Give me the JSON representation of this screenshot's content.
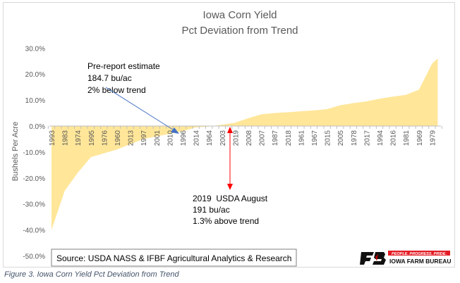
{
  "chart_data": {
    "type": "area",
    "title": "Iowa Corn Yield",
    "subtitle": "Pct Deviation from Trend",
    "xlabel": "",
    "ylabel": "Bushels Per Acre",
    "ylim": [
      -50,
      30
    ],
    "yticks": [
      "30.0%",
      "20.0%",
      "10.0%",
      "0.0%",
      "-10.0%",
      "-20.0%",
      "-30.0%",
      "-40.0%",
      "-50.0%"
    ],
    "grid": false,
    "fill_color": "#ffe699",
    "categories": [
      "1993",
      "1983",
      "1974",
      "1995",
      "1976",
      "1960",
      "2013",
      "1997",
      "2001",
      "2010",
      "1996",
      "2014",
      "1964",
      "2003",
      "2019",
      "2008",
      "2007",
      "1987",
      "2018",
      "1961",
      "1967",
      "2015",
      "2005",
      "1978",
      "2017",
      "1994",
      "2016",
      "1981",
      "1969",
      "1979"
    ],
    "values": [
      -40,
      -25,
      -18,
      -12,
      -10.5,
      -9,
      -7,
      -5,
      -4,
      -3,
      -2,
      -0.5,
      -0.2,
      0.5,
      1.3,
      3,
      4.5,
      5,
      5.3,
      5.7,
      6,
      6.5,
      8,
      8.8,
      9.5,
      10.5,
      11.3,
      12,
      14,
      24
    ],
    "annotations": {
      "pre_report": [
        "Pre-report estimate",
        "184.7 bu/ac",
        "2% below trend"
      ],
      "usda": [
        "2019  USDA August",
        "191 bu/ac",
        "1.3% above trend"
      ]
    },
    "arrow_colors": {
      "pre_report": "#4472c4",
      "usda": "#ff0000"
    },
    "source": "Source: USDA NASS & IFBF Agricultural Analytics & Research"
  },
  "logo": {
    "tagline": "PEOPLE. PROGRESS. PRIDE.",
    "name": "IOWA FARM BUREAU"
  },
  "caption": "Figure 3. Iowa Corn Yield Pct Deviation from Trend"
}
